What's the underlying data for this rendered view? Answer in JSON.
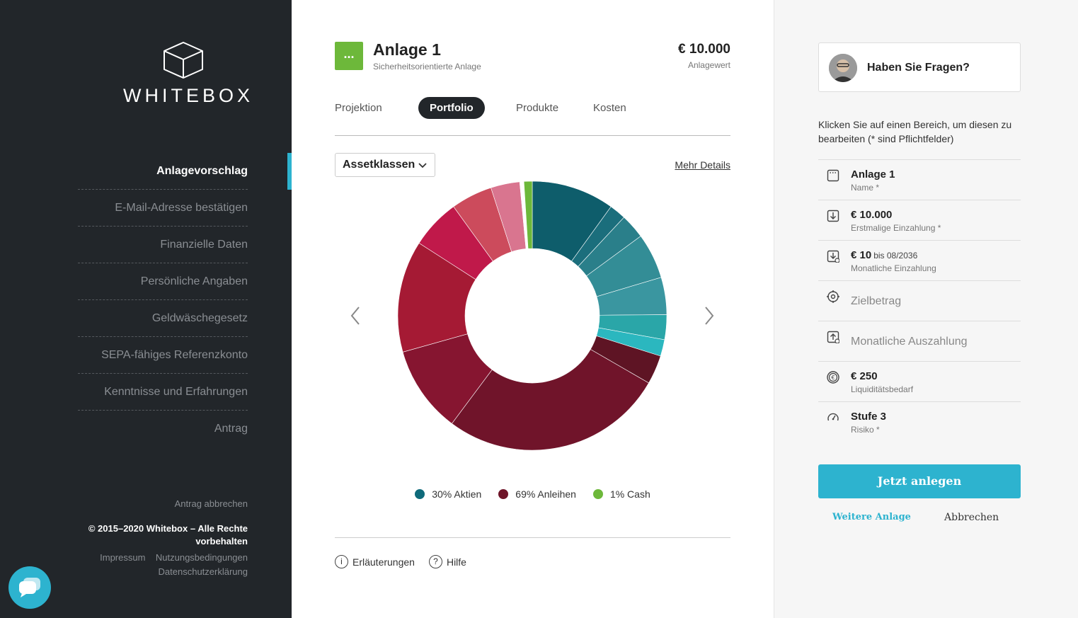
{
  "brand": {
    "name": "WHITEBOX"
  },
  "sidebar": {
    "items": [
      {
        "label": "Anlagevorschlag"
      },
      {
        "label": "E-Mail-Adresse bestätigen"
      },
      {
        "label": "Finanzielle Daten"
      },
      {
        "label": "Persönliche Angaben"
      },
      {
        "label": "Geldwäschegesetz"
      },
      {
        "label": "SEPA-fähiges Referenzkonto"
      },
      {
        "label": "Kenntnisse und Erfahrungen"
      },
      {
        "label": "Antrag"
      }
    ],
    "cancel_link": "Antrag abbrechen",
    "copyright": "© 2015–2020 Whitebox – Alle Rechte vorbehalten",
    "impressum": "Impressum",
    "terms": "Nutzungsbedingungen",
    "privacy": "Datenschutzerklärung"
  },
  "header": {
    "icon_label": "...",
    "title": "Anlage 1",
    "subtitle": "Sicherheitsorientierte Anlage",
    "amount": "€ 10.000",
    "amount_label": "Anlagewert"
  },
  "tabs": [
    {
      "label": "Projektion"
    },
    {
      "label": "Portfolio"
    },
    {
      "label": "Produkte"
    },
    {
      "label": "Kosten"
    }
  ],
  "dropdown": {
    "selected": "Assetklassen"
  },
  "details_link": "Mehr Details",
  "legend": [
    {
      "label": "30% Aktien",
      "color": "#0e6a7a"
    },
    {
      "label": "69% Anleihen",
      "color": "#6e1428"
    },
    {
      "label": "1% Cash",
      "color": "#6db83a"
    }
  ],
  "chart_data": {
    "type": "pie",
    "series": [
      {
        "values": [
          10.0,
          2.0,
          3.0,
          5.5,
          4.5,
          3.0,
          2.0,
          3.5,
          27.0,
          10.5,
          13.5,
          6.0,
          5.0,
          3.5,
          0.5,
          1.0
        ]
      }
    ],
    "colors": [
      "#0e5d6b",
      "#1b6e7c",
      "#2a7f8a",
      "#338d96",
      "#3a96a0",
      "#2aa6a8",
      "#2bb7bf",
      "#5e1424",
      "#70142a",
      "#861530",
      "#a51a34",
      "#c0194a",
      "#cc4b5c",
      "#d9758f",
      "#ffffff",
      "#6db83a"
    ]
  },
  "bottom_links": {
    "explanations": "Erläuterungen",
    "help": "Hilfe"
  },
  "right_panel": {
    "help_title": "Haben Sie Fragen?",
    "intro": "Klicken Sie auf einen Bereich, um diesen zu bearbeiten (* sind Pflichtfelder)",
    "fields": [
      {
        "value": "Anlage 1",
        "label": "Name *",
        "icon": "name-icon"
      },
      {
        "value": "€ 10.000",
        "label": "Erstmalige Einzahlung *",
        "icon": "deposit-icon"
      },
      {
        "value": "€ 10",
        "extra": "bis 08/2036",
        "label": "Monatliche Einzahlung",
        "icon": "monthly-deposit-icon"
      },
      {
        "value": "Zielbetrag",
        "icon": "target-icon"
      },
      {
        "value": "Monatliche Auszahlung",
        "icon": "payout-icon"
      },
      {
        "value": "€ 250",
        "label": "Liquiditätsbedarf",
        "icon": "euro-icon"
      },
      {
        "value": "Stufe 3",
        "label": "Risiko *",
        "icon": "gauge-icon"
      }
    ],
    "cta": "Jetzt anlegen",
    "more": "Weitere Anlage",
    "cancel": "Abbrechen"
  }
}
